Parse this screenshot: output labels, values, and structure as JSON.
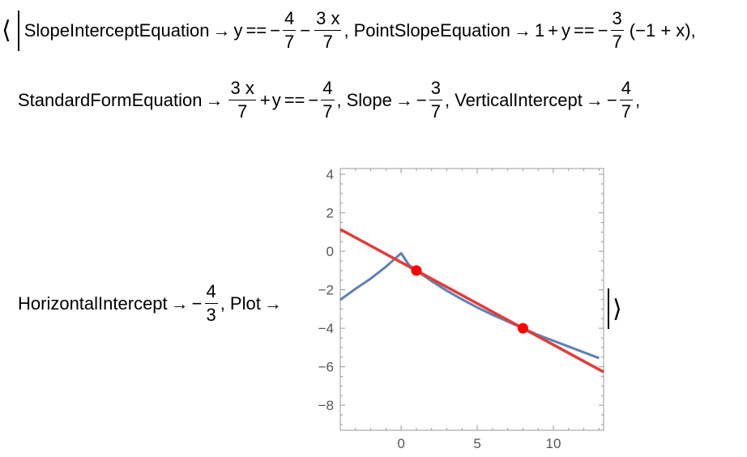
{
  "expr": {
    "open_angle": "⟨",
    "close_angle": "⟩",
    "arrow": "→",
    "minus": "−",
    "plus": "+",
    "eqeq": "==",
    "comma": ",",
    "k1": "SlopeInterceptEquation",
    "k1_y": "y",
    "k1_f1_num": "4",
    "k1_f1_den": "7",
    "k1_f2_num": "3 x",
    "k1_f2_den": "7",
    "k2": "PointSlopeEquation",
    "k2_lhs_a": "1",
    "k2_lhs_b": "y",
    "k2_f_num": "3",
    "k2_f_den": "7",
    "k2_paren": "(−1 + x)",
    "k3": "StandardFormEquation",
    "k3_f_num": "3 x",
    "k3_f_den": "7",
    "k3_y": "y",
    "k3_f2_num": "4",
    "k3_f2_den": "7",
    "k4": "Slope",
    "k4_f_num": "3",
    "k4_f_den": "7",
    "k5": "VerticalIntercept",
    "k5_f_num": "4",
    "k5_f_den": "7",
    "k6": "HorizontalIntercept",
    "k6_f_num": "4",
    "k6_f_den": "3",
    "k7": "Plot"
  },
  "chart_data": {
    "type": "line",
    "xlim": [
      -4,
      13.3
    ],
    "ylim": [
      -9.3,
      4.3
    ],
    "x_ticks": [
      0,
      5,
      10
    ],
    "y_ticks": [
      4,
      2,
      0,
      -2,
      -4,
      -6,
      -8
    ],
    "x_tick_labels": [
      "0",
      "5",
      "10"
    ],
    "y_tick_labels": [
      "4",
      "2",
      "0",
      "−2",
      "−4",
      "−6",
      "−8"
    ],
    "grid": false,
    "colors": {
      "curve": "#5e81b5",
      "line": "#e33b3b",
      "points": "#ff0000",
      "frame": "#999999",
      "ticklabel": "#555555"
    },
    "series": [
      {
        "kind": "curve",
        "x": [
          -4,
          -3,
          -2,
          -1,
          -0.5,
          0,
          0.5,
          1,
          2,
          3,
          4,
          5,
          6,
          7,
          8,
          9,
          10,
          11,
          12,
          13
        ],
        "y": [
          -2.52,
          -1.95,
          -1.42,
          -0.8,
          -0.45,
          -0.1,
          -0.7,
          -1.0,
          -1.55,
          -2.05,
          -2.5,
          -2.92,
          -3.3,
          -3.65,
          -4.0,
          -4.35,
          -4.65,
          -4.95,
          -5.25,
          -5.55
        ]
      },
      {
        "kind": "line",
        "x": [
          -4,
          13.3
        ],
        "y": [
          1.143,
          -6.271
        ]
      },
      {
        "kind": "points",
        "x": [
          1,
          8
        ],
        "y": [
          -1,
          -4
        ]
      }
    ]
  }
}
